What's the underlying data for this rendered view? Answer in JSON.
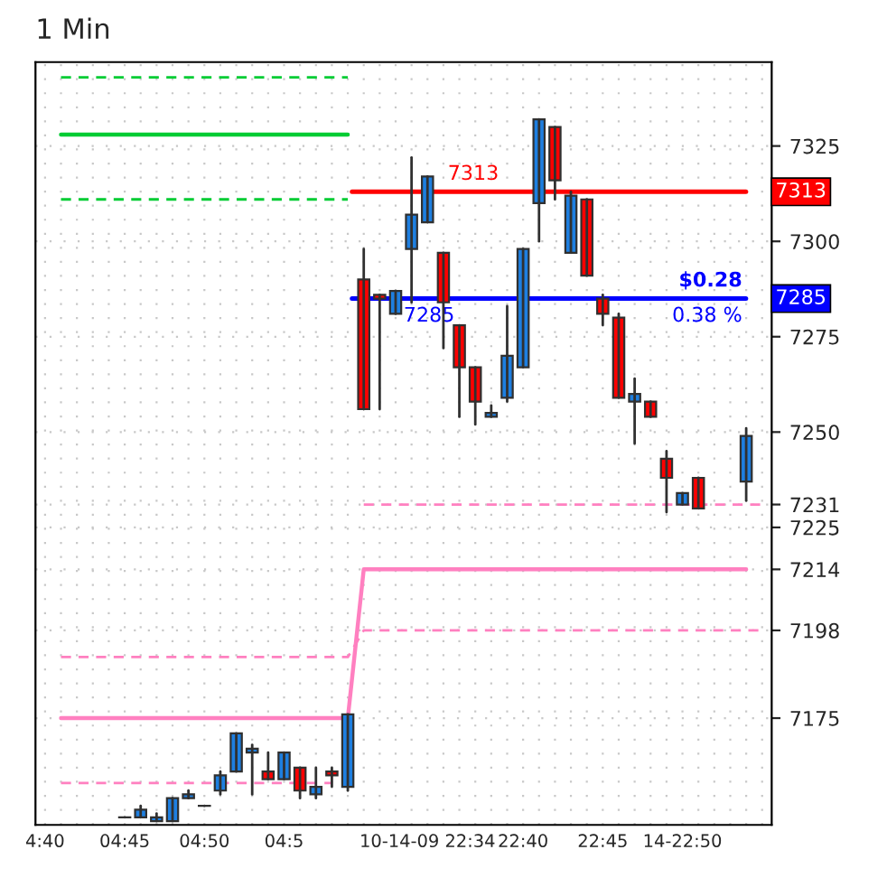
{
  "chart_data": {
    "type": "candlestick",
    "title": "1 Min",
    "categories": [
      "4:40",
      null,
      null,
      null,
      null,
      "04:45",
      null,
      null,
      null,
      null,
      "04:50",
      null,
      null,
      null,
      null,
      "04:5",
      null,
      null,
      null,
      null,
      null,
      null,
      null,
      null,
      "10-14-09 22:34",
      null,
      null,
      null,
      null,
      null,
      "22:40",
      null,
      null,
      null,
      null,
      "22:45",
      null,
      null,
      null,
      null,
      "14-22:50",
      null,
      null,
      null,
      null,
      null
    ],
    "ohlc": [
      null,
      null,
      null,
      null,
      null,
      [
        7149,
        7149,
        7149,
        7149
      ],
      [
        7149,
        7152,
        7149,
        7151
      ],
      [
        7148,
        7150,
        7148,
        7149
      ],
      [
        7148,
        7154,
        7148,
        7154
      ],
      [
        7154,
        7156,
        7154,
        7155
      ],
      [
        7152,
        7152,
        7152,
        7152
      ],
      [
        7156,
        7161,
        7155,
        7160
      ],
      [
        7161,
        7171,
        7161,
        7171
      ],
      [
        7166,
        7168,
        7155,
        7167
      ],
      [
        7161,
        7166,
        7159,
        7159
      ],
      [
        7159,
        7166,
        7159,
        7166
      ],
      [
        7162,
        7162,
        7154,
        7156
      ],
      [
        7155,
        7162,
        7154,
        7157
      ],
      [
        7161,
        7162,
        7157,
        7160
      ],
      [
        7157,
        7176,
        7156,
        7176
      ],
      [
        7290,
        7298,
        7256,
        7256
      ],
      [
        7286,
        7286,
        7256,
        7285
      ],
      [
        7281,
        7287,
        7281,
        7287
      ],
      [
        7298,
        7322,
        7284,
        7307
      ],
      [
        7305,
        7317,
        7305,
        7317
      ],
      [
        7297,
        7297,
        7272,
        7284
      ],
      [
        7278,
        7278,
        7254,
        7267
      ],
      [
        7267,
        7267,
        7252,
        7258
      ],
      [
        7254,
        7257,
        7254,
        7255
      ],
      [
        7259,
        7283,
        7258,
        7270
      ],
      [
        7267,
        7298,
        7267,
        7298
      ],
      [
        7310,
        7332,
        7300,
        7332
      ],
      [
        7330,
        7330,
        7311,
        7316
      ],
      [
        7297,
        7313,
        7297,
        7312
      ],
      [
        7311,
        7311,
        7291,
        7291
      ],
      [
        7285,
        7286,
        7278,
        7281
      ],
      [
        7280,
        7281,
        7259,
        7259
      ],
      [
        7258,
        7264,
        7247,
        7260
      ],
      [
        7258,
        7258,
        7254,
        7254
      ],
      [
        7243,
        7245,
        7229,
        7238
      ],
      [
        7231,
        7234,
        7231,
        7234
      ],
      [
        7238,
        7238,
        7230,
        7230
      ],
      null,
      null,
      [
        7237,
        7251,
        7232,
        7249
      ],
      null
    ],
    "colors": [
      null,
      null,
      null,
      null,
      null,
      "#303030",
      "#1e7fe0",
      "#1e7fe0",
      "#1e7fe0",
      "#1e7fe0",
      "#303030",
      "#1e7fe0",
      "#1e7fe0",
      "#1e7fe0",
      "#ff0000",
      "#1e7fe0",
      "#ff0000",
      "#1e7fe0",
      "#ff0000",
      "#1e7fe0",
      "#ff0000",
      "#ff0000",
      "#1e7fe0",
      "#1e7fe0",
      "#1e7fe0",
      "#ff0000",
      "#ff0000",
      "#ff0000",
      "#1e7fe0",
      "#1e7fe0",
      "#1e7fe0",
      "#1e7fe0",
      "#ff0000",
      "#1e7fe0",
      "#ff0000",
      "#ff0000",
      "#ff0000",
      "#1e7fe0",
      "#ff0000",
      "#ff0000",
      "#1e7fe0",
      "#ff0000",
      null,
      null,
      "#1e7fe0",
      null
    ],
    "series": [
      {
        "type": "line",
        "color": "#00cc33",
        "line_style": "solid",
        "values": [
          null,
          7328,
          7328,
          7328,
          7328,
          7328,
          7328,
          7328,
          7328,
          7328,
          7328,
          7328,
          7328,
          7328,
          7328,
          7328,
          7328,
          7328,
          7328,
          7328,
          null,
          null,
          null,
          null,
          null,
          null,
          null,
          null,
          null,
          null,
          null,
          null,
          null,
          null,
          null,
          null,
          null,
          null,
          null,
          null,
          null,
          null,
          null,
          null,
          null,
          null
        ]
      },
      {
        "type": "line",
        "color": "#00cc33",
        "line_style": "dashed",
        "values": [
          null,
          7343,
          7343,
          7343,
          7343,
          7343,
          7343,
          7343,
          7343,
          7343,
          7343,
          7343,
          7343,
          7343,
          7343,
          7343,
          7343,
          7343,
          7343,
          7343,
          null,
          null,
          null,
          null,
          null,
          null,
          null,
          null,
          null,
          null,
          null,
          null,
          null,
          null,
          null,
          null,
          null,
          null,
          null,
          null,
          null,
          null,
          null,
          null,
          null,
          null
        ]
      },
      {
        "type": "line",
        "color": "#00cc33",
        "line_style": "dashed",
        "values": [
          null,
          7311,
          7311,
          7311,
          7311,
          7311,
          7311,
          7311,
          7311,
          7311,
          7311,
          7311,
          7311,
          7311,
          7311,
          7311,
          7311,
          7311,
          7311,
          7311,
          null,
          null,
          null,
          null,
          null,
          null,
          null,
          null,
          null,
          null,
          null,
          null,
          null,
          null,
          null,
          null,
          null,
          null,
          null,
          null,
          null,
          null,
          null,
          null,
          null,
          null
        ]
      },
      {
        "type": "line",
        "color": "#ff80c0",
        "line_style": "solid",
        "values": [
          null,
          7175,
          7175,
          7175,
          7175,
          7175,
          7175,
          7175,
          7175,
          7175,
          7175,
          7175,
          7175,
          7175,
          7175,
          7175,
          7175,
          7175,
          7175,
          7175,
          7214,
          7214,
          7214,
          7214,
          7214,
          7214,
          7214,
          7214,
          7214,
          7214,
          7214,
          7214,
          7214,
          7214,
          7214,
          7214,
          7214,
          7214,
          7214,
          7214,
          7214,
          7214,
          7214,
          7214,
          7214,
          null
        ]
      },
      {
        "type": "line",
        "color": "#ff80c0",
        "line_style": "dashed",
        "values": [
          null,
          7191,
          7191,
          7191,
          7191,
          7191,
          7191,
          7191,
          7191,
          7191,
          7191,
          7191,
          7191,
          7191,
          7191,
          7191,
          7191,
          7191,
          7191,
          7191,
          7198,
          7198,
          7198,
          7198,
          7198,
          7198,
          7198,
          7198,
          7198,
          7198,
          7198,
          7198,
          7198,
          7198,
          7198,
          7198,
          7198,
          7198,
          7198,
          7198,
          7198,
          7198,
          7198,
          7198,
          7198,
          7198
        ]
      },
      {
        "type": "line",
        "color": "#ff80c0",
        "line_style": "dashed",
        "values": [
          null,
          7158,
          7158,
          7158,
          7158,
          7158,
          7158,
          7158,
          7158,
          7158,
          7158,
          7158,
          7158,
          7158,
          7158,
          7158,
          7158,
          7158,
          7158,
          null,
          null,
          null,
          null,
          null,
          null,
          null,
          null,
          null,
          null,
          null,
          null,
          null,
          null,
          null,
          null,
          null,
          null,
          null,
          null,
          null,
          null,
          null,
          null,
          null,
          null,
          null
        ]
      },
      {
        "type": "line",
        "color": "#ff80c0",
        "line_style": "dashed",
        "values": [
          null,
          null,
          null,
          null,
          null,
          null,
          null,
          null,
          null,
          null,
          null,
          null,
          null,
          null,
          null,
          null,
          null,
          null,
          null,
          null,
          7231,
          7231,
          7231,
          7231,
          7231,
          7231,
          7231,
          7231,
          7231,
          7231,
          7231,
          7231,
          7231,
          7231,
          7231,
          7231,
          7231,
          7231,
          7231,
          7231,
          7231,
          7231,
          7231,
          7231,
          7231,
          7231
        ]
      }
    ],
    "ylim": [
      7147,
      7347
    ],
    "yticks": [
      7325,
      7300,
      7275,
      7250,
      7231,
      7225,
      7214,
      7198,
      7175
    ],
    "ref_lines": [
      {
        "axis": "y",
        "value": 7313,
        "label": "7313",
        "color": "#ff0000",
        "line_style": "solid"
      },
      {
        "axis": "y",
        "value": 7285,
        "label": "7285",
        "color": "#0000ff",
        "line_style": "solid"
      }
    ],
    "annotations": [
      {
        "text": "7313",
        "y": 7313
      },
      {
        "text": "7285",
        "y": 7285
      },
      {
        "text": "$0.28",
        "y": 7285
      },
      {
        "text": "0.38 %",
        "y": 7285
      }
    ],
    "grid": true,
    "legend": false
  }
}
